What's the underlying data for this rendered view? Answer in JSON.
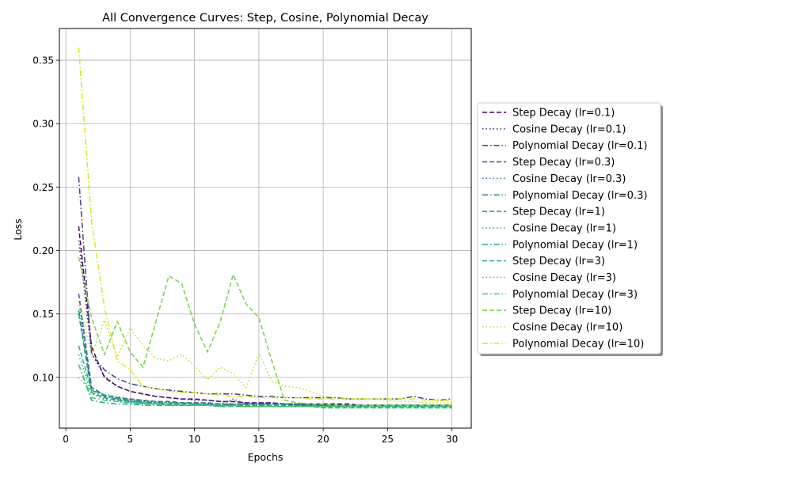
{
  "chart_data": {
    "type": "line",
    "title": "All Convergence Curves: Step, Cosine, Polynomial Decay",
    "xlabel": "Epochs",
    "ylabel": "Loss",
    "xlim": [
      -0.5,
      31.5
    ],
    "ylim": [
      0.06,
      0.375
    ],
    "xticks": [
      0,
      5,
      10,
      15,
      20,
      25,
      30
    ],
    "xtick_labels": [
      "0",
      "5",
      "10",
      "15",
      "20",
      "25",
      "30"
    ],
    "yticks": [
      0.1,
      0.15,
      0.2,
      0.25,
      0.3,
      0.35
    ],
    "ytick_labels": [
      "0.10",
      "0.15",
      "0.20",
      "0.25",
      "0.30",
      "0.35"
    ],
    "grid": true,
    "legend_position": "right, outside plot",
    "x": [
      1,
      2,
      3,
      4,
      5,
      6,
      7,
      8,
      9,
      10,
      11,
      12,
      13,
      14,
      15,
      16,
      17,
      18,
      19,
      20,
      21,
      22,
      23,
      24,
      25,
      26,
      27,
      28,
      29,
      30
    ],
    "series": [
      {
        "name": "Step Decay (lr=0.1)",
        "color": "#440154",
        "dash": "dashed",
        "values": [
          0.219,
          0.124,
          0.1,
          0.093,
          0.089,
          0.087,
          0.085,
          0.084,
          0.083,
          0.083,
          0.082,
          0.081,
          0.081,
          0.08,
          0.08,
          0.08,
          0.079,
          0.079,
          0.079,
          0.079,
          0.079,
          0.079,
          0.078,
          0.078,
          0.078,
          0.078,
          0.078,
          0.078,
          0.078,
          0.078
        ]
      },
      {
        "name": "Cosine Decay (lr=0.1)",
        "color": "#482173",
        "dash": "dotted",
        "values": [
          0.208,
          0.119,
          0.101,
          0.093,
          0.089,
          0.087,
          0.085,
          0.084,
          0.083,
          0.082,
          0.082,
          0.081,
          0.081,
          0.08,
          0.08,
          0.08,
          0.079,
          0.079,
          0.079,
          0.079,
          0.079,
          0.078,
          0.078,
          0.078,
          0.078,
          0.078,
          0.078,
          0.078,
          0.078,
          0.078
        ]
      },
      {
        "name": "Polynomial Decay (lr=0.1)",
        "color": "#433e85",
        "dash": "dashdot",
        "values": [
          0.258,
          0.118,
          0.106,
          0.099,
          0.095,
          0.093,
          0.091,
          0.09,
          0.089,
          0.088,
          0.087,
          0.087,
          0.087,
          0.086,
          0.085,
          0.085,
          0.084,
          0.084,
          0.084,
          0.084,
          0.084,
          0.083,
          0.083,
          0.083,
          0.083,
          0.083,
          0.085,
          0.083,
          0.082,
          0.083
        ]
      },
      {
        "name": "Step Decay (lr=0.3)",
        "color": "#38588c",
        "dash": "dashed",
        "values": [
          0.166,
          0.092,
          0.086,
          0.084,
          0.083,
          0.082,
          0.081,
          0.081,
          0.08,
          0.08,
          0.08,
          0.079,
          0.079,
          0.079,
          0.079,
          0.079,
          0.079,
          0.078,
          0.078,
          0.078,
          0.078,
          0.078,
          0.078,
          0.078,
          0.078,
          0.078,
          0.078,
          0.078,
          0.078,
          0.078
        ]
      },
      {
        "name": "Cosine Decay (lr=0.3)",
        "color": "#2d708e",
        "dash": "dotted",
        "values": [
          0.16,
          0.092,
          0.086,
          0.084,
          0.082,
          0.081,
          0.081,
          0.08,
          0.08,
          0.08,
          0.079,
          0.079,
          0.083,
          0.079,
          0.079,
          0.078,
          0.078,
          0.078,
          0.078,
          0.078,
          0.078,
          0.078,
          0.078,
          0.078,
          0.078,
          0.078,
          0.078,
          0.078,
          0.078,
          0.078
        ]
      },
      {
        "name": "Polynomial Decay (lr=0.3)",
        "color": "#25858e",
        "dash": "dashdot",
        "values": [
          0.153,
          0.09,
          0.085,
          0.083,
          0.082,
          0.081,
          0.08,
          0.08,
          0.08,
          0.079,
          0.079,
          0.079,
          0.079,
          0.079,
          0.079,
          0.079,
          0.079,
          0.079,
          0.078,
          0.078,
          0.078,
          0.078,
          0.078,
          0.078,
          0.078,
          0.078,
          0.078,
          0.078,
          0.078,
          0.078
        ]
      },
      {
        "name": "Step Decay (lr=1)",
        "color": "#1e9b8a",
        "dash": "dashed",
        "values": [
          0.15,
          0.088,
          0.084,
          0.082,
          0.081,
          0.08,
          0.08,
          0.079,
          0.079,
          0.079,
          0.079,
          0.078,
          0.078,
          0.078,
          0.078,
          0.078,
          0.078,
          0.078,
          0.078,
          0.078,
          0.077,
          0.077,
          0.077,
          0.077,
          0.077,
          0.077,
          0.077,
          0.077,
          0.077,
          0.077
        ]
      },
      {
        "name": "Cosine Decay (lr=1)",
        "color": "#20a486",
        "dash": "dotted",
        "values": [
          0.118,
          0.087,
          0.083,
          0.081,
          0.08,
          0.079,
          0.079,
          0.079,
          0.078,
          0.078,
          0.078,
          0.078,
          0.078,
          0.078,
          0.078,
          0.077,
          0.077,
          0.077,
          0.077,
          0.077,
          0.077,
          0.077,
          0.077,
          0.077,
          0.077,
          0.077,
          0.077,
          0.077,
          0.077,
          0.077
        ]
      },
      {
        "name": "Polynomial Decay (lr=1)",
        "color": "#22a884",
        "dash": "dashdot",
        "values": [
          0.11,
          0.082,
          0.08,
          0.079,
          0.079,
          0.078,
          0.078,
          0.078,
          0.078,
          0.078,
          0.078,
          0.078,
          0.078,
          0.077,
          0.077,
          0.077,
          0.077,
          0.077,
          0.077,
          0.077,
          0.077,
          0.077,
          0.077,
          0.077,
          0.077,
          0.077,
          0.077,
          0.077,
          0.077,
          0.077
        ]
      },
      {
        "name": "Step Decay (lr=3)",
        "color": "#2ab07f",
        "dash": "dashed",
        "values": [
          0.125,
          0.09,
          0.086,
          0.083,
          0.081,
          0.08,
          0.079,
          0.078,
          0.078,
          0.078,
          0.078,
          0.077,
          0.077,
          0.077,
          0.077,
          0.077,
          0.077,
          0.077,
          0.077,
          0.076,
          0.076,
          0.076,
          0.076,
          0.076,
          0.076,
          0.076,
          0.076,
          0.076,
          0.076,
          0.076
        ]
      },
      {
        "name": "Cosine Decay (lr=3)",
        "color": "#44bf70",
        "dash": "dotted",
        "values": [
          0.1,
          0.089,
          0.087,
          0.085,
          0.083,
          0.082,
          0.081,
          0.08,
          0.079,
          0.079,
          0.078,
          0.078,
          0.078,
          0.077,
          0.077,
          0.077,
          0.077,
          0.077,
          0.077,
          0.076,
          0.076,
          0.076,
          0.076,
          0.076,
          0.076,
          0.076,
          0.076,
          0.076,
          0.076,
          0.076
        ]
      },
      {
        "name": "Polynomial Decay (lr=3)",
        "color": "#52c569",
        "dash": "dashdot",
        "values": [
          0.11,
          0.084,
          0.082,
          0.081,
          0.08,
          0.079,
          0.079,
          0.078,
          0.078,
          0.078,
          0.078,
          0.077,
          0.077,
          0.077,
          0.077,
          0.077,
          0.077,
          0.077,
          0.077,
          0.077,
          0.077,
          0.077,
          0.077,
          0.077,
          0.077,
          0.077,
          0.077,
          0.077,
          0.077,
          0.077
        ]
      },
      {
        "name": "Step Decay (lr=10)",
        "color": "#7ad151",
        "dash": "dashed",
        "values": [
          0.195,
          0.147,
          0.118,
          0.144,
          0.12,
          0.108,
          0.144,
          0.18,
          0.174,
          0.142,
          0.12,
          0.144,
          0.181,
          0.158,
          0.147,
          0.113,
          0.082,
          0.08,
          0.079,
          0.079,
          0.078,
          0.078,
          0.078,
          0.078,
          0.078,
          0.078,
          0.078,
          0.078,
          0.078,
          0.078
        ]
      },
      {
        "name": "Cosine Decay (lr=10)",
        "color": "#b5de2b",
        "dash": "dotted",
        "values": [
          0.16,
          0.118,
          0.145,
          0.116,
          0.139,
          0.125,
          0.115,
          0.113,
          0.118,
          0.109,
          0.098,
          0.108,
          0.103,
          0.092,
          0.119,
          0.097,
          0.093,
          0.092,
          0.089,
          0.085,
          0.084,
          0.083,
          0.083,
          0.083,
          0.082,
          0.081,
          0.081,
          0.08,
          0.08,
          0.08
        ]
      },
      {
        "name": "Polynomial Decay (lr=10)",
        "color": "#dde318",
        "dash": "dashdot",
        "values": [
          0.36,
          0.223,
          0.155,
          0.113,
          0.106,
          0.093,
          0.091,
          0.089,
          0.088,
          0.088,
          0.087,
          0.086,
          0.085,
          0.085,
          0.084,
          0.084,
          0.084,
          0.084,
          0.083,
          0.083,
          0.083,
          0.083,
          0.083,
          0.083,
          0.083,
          0.083,
          0.083,
          0.082,
          0.082,
          0.082
        ]
      }
    ]
  }
}
